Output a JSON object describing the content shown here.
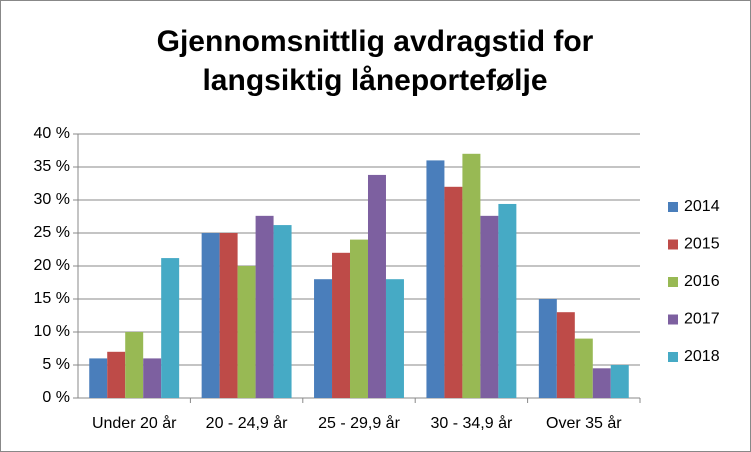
{
  "chart_data": {
    "type": "bar",
    "title": "Gjennomsnittlig avdragstid for langsiktig låneportefølje",
    "categories": [
      "Under 20 år",
      "20 - 24,9 år",
      "25 - 29,9 år",
      "30 - 34,9 år",
      "Over 35 år"
    ],
    "series": [
      {
        "name": "2014",
        "color": "#4a7ebb",
        "values": [
          6,
          25,
          18,
          36,
          15
        ]
      },
      {
        "name": "2015",
        "color": "#be4b48",
        "values": [
          7,
          25,
          22,
          32,
          13
        ]
      },
      {
        "name": "2016",
        "color": "#98b954",
        "values": [
          10,
          20,
          24,
          37,
          9
        ]
      },
      {
        "name": "2017",
        "color": "#7d60a0",
        "values": [
          6,
          27.6,
          33.8,
          27.6,
          4.5
        ]
      },
      {
        "name": "2018",
        "color": "#46aac5",
        "values": [
          21.2,
          26.2,
          18,
          29.4,
          5
        ]
      }
    ],
    "ylim": [
      0,
      40
    ],
    "yticks": [
      {
        "value": 0,
        "label": "0 %"
      },
      {
        "value": 5,
        "label": "5 %"
      },
      {
        "value": 10,
        "label": "10 %"
      },
      {
        "value": 15,
        "label": "15 %"
      },
      {
        "value": 20,
        "label": "20 %"
      },
      {
        "value": 25,
        "label": "25 %"
      },
      {
        "value": 30,
        "label": "30 %"
      },
      {
        "value": 35,
        "label": "35 %"
      },
      {
        "value": 40,
        "label": "40 %"
      }
    ],
    "grid": true,
    "legend": "right"
  }
}
